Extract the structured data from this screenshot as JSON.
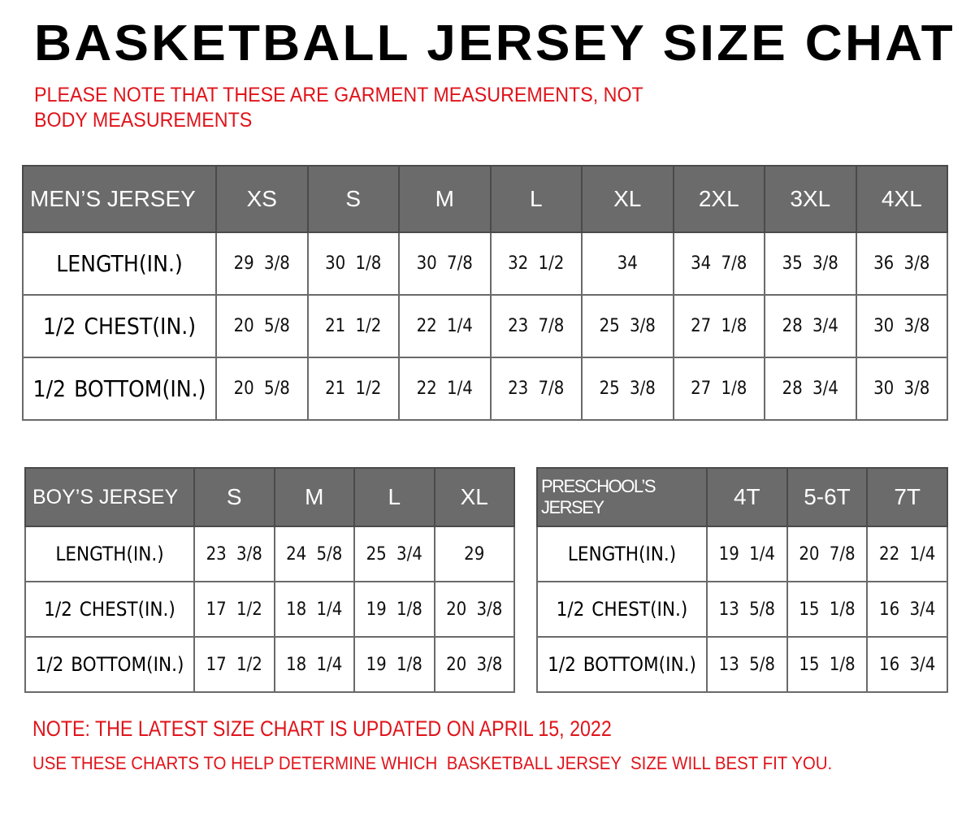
{
  "title": "BASKETBALL JERSEY SIZE CHAT",
  "note": "PLEASE NOTE THAT THESE ARE GARMENT MEASUREMENTS, NOT BODY MEASUREMENTS",
  "colors": {
    "header_bg": "#6b6b6b",
    "note_red": "#e0141b"
  },
  "tables": {
    "men": {
      "header": [
        "MEN’S JERSEY",
        "XS",
        "S",
        "M",
        "L",
        "XL",
        "2XL",
        "3XL",
        "4XL"
      ],
      "rows": [
        [
          "LENGTH(IN.)",
          "29  3/8",
          "30  1/8",
          "30  7/8",
          "32  1/2",
          "34",
          "34  7/8",
          "35  3/8",
          "36  3/8"
        ],
        [
          "1/2  CHEST(IN.)",
          "20  5/8",
          "21  1/2",
          "22  1/4",
          "23  7/8",
          "25  3/8",
          "27  1/8",
          "28  3/4",
          "30  3/8"
        ],
        [
          "1/2  BOTTOM(IN.)",
          "20  5/8",
          "21  1/2",
          "22  1/4",
          "23  7/8",
          "25  3/8",
          "27  1/8",
          "28  3/4",
          "30  3/8"
        ]
      ]
    },
    "boys": {
      "header": [
        "BOY’S JERSEY",
        "S",
        "M",
        "L",
        "XL"
      ],
      "rows": [
        [
          "LENGTH(IN.)",
          "23  3/8",
          "24  5/8",
          "25  3/4",
          "29"
        ],
        [
          "1/2  CHEST(IN.)",
          "17  1/2",
          "18  1/4",
          "19  1/8",
          "20  3/8"
        ],
        [
          "1/2  BOTTOM(IN.)",
          "17  1/2",
          "18  1/4",
          "19  1/8",
          "20  3/8"
        ]
      ]
    },
    "pre": {
      "header": [
        "PRESCHOOL’S JERSEY",
        "4T",
        "5-6T",
        "7T"
      ],
      "rows": [
        [
          "LENGTH(IN.)",
          "19  1/4",
          "20  7/8",
          "22  1/4"
        ],
        [
          "1/2  CHEST(IN.)",
          "13  5/8",
          "15  1/8",
          "16  3/4"
        ],
        [
          "1/2  BOTTOM(IN.)",
          "13  5/8",
          "15  1/8",
          "16  3/4"
        ]
      ]
    }
  },
  "footer": {
    "updated": "NOTE: THE LATEST SIZE CHART IS UPDATED ON APRIL 15, 2022",
    "usage": "USE THESE CHARTS TO HELP DETERMINE WHICH  BASKETBALL JERSEY  SIZE WILL BEST FIT YOU."
  }
}
